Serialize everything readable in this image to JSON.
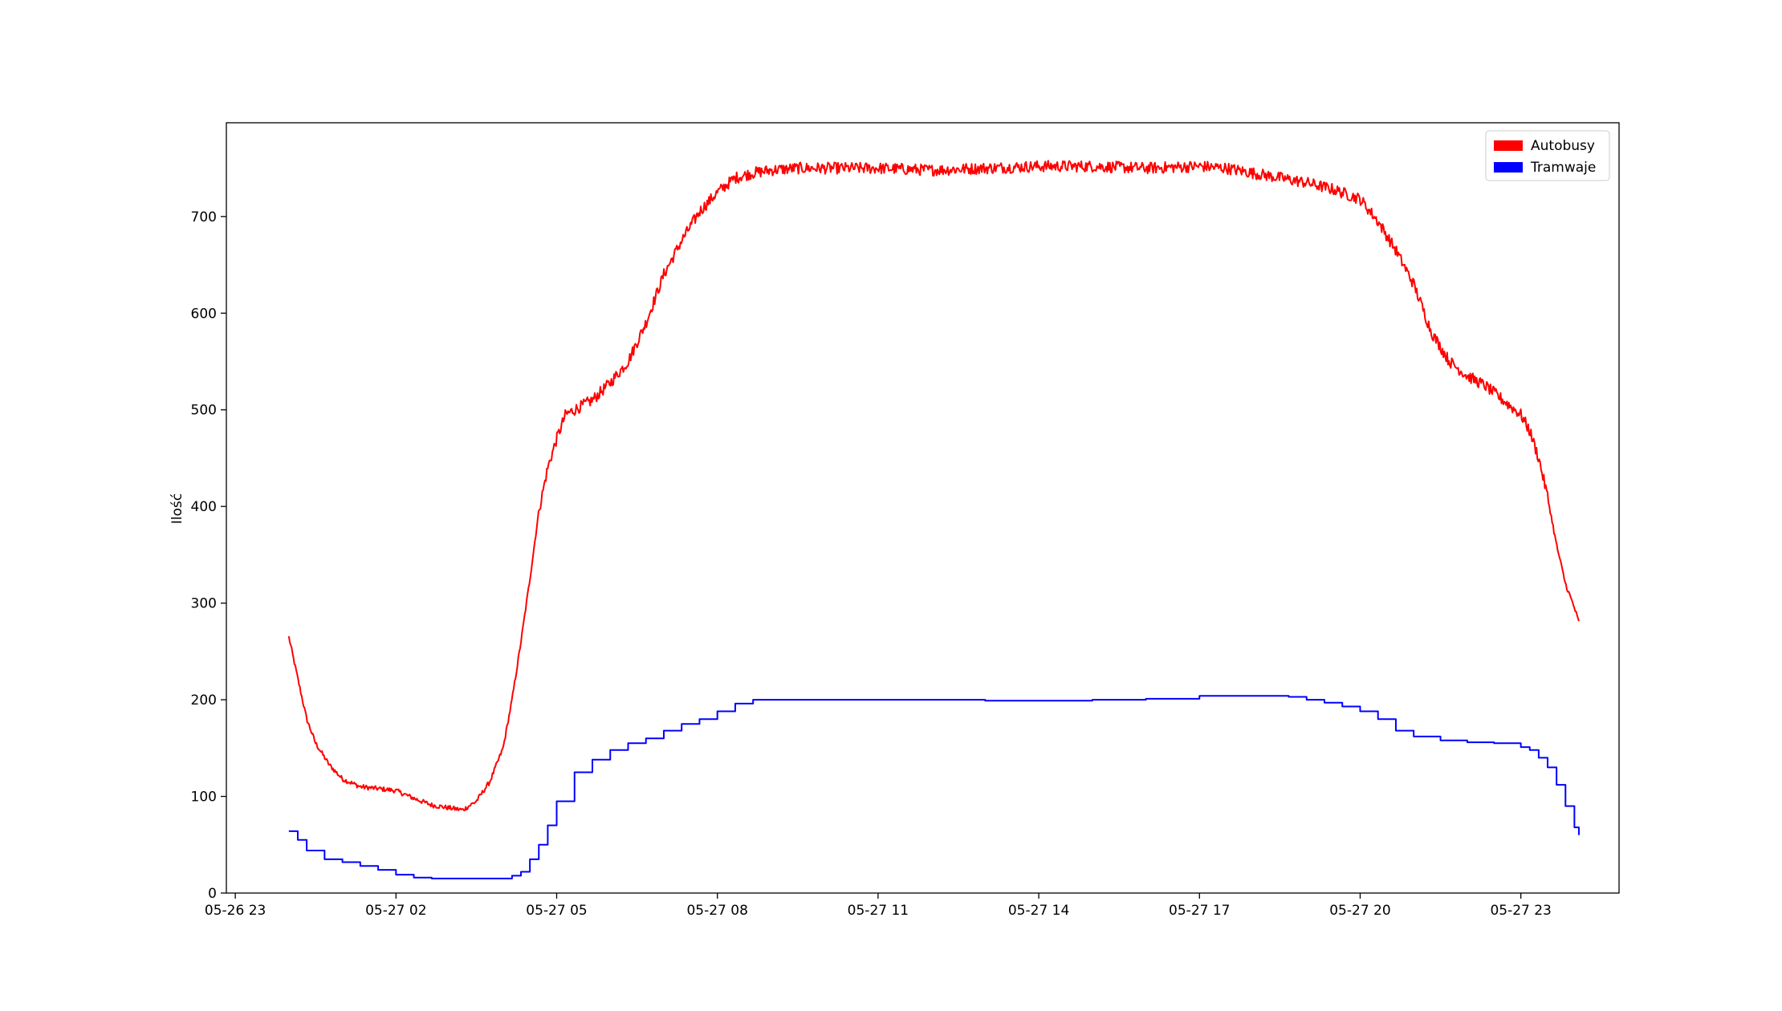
{
  "chart_data": {
    "type": "line",
    "title": "",
    "xlabel": "",
    "ylabel": "Ilość",
    "x_ticks": [
      "05-26 23",
      "05-27 02",
      "05-27 05",
      "05-27 08",
      "05-27 11",
      "05-27 14",
      "05-27 17",
      "05-27 20",
      "05-27 23"
    ],
    "y_ticks": [
      0,
      100,
      200,
      300,
      400,
      500,
      600,
      700
    ],
    "xlim": [
      "05-26 22:50",
      "05-28 00:50"
    ],
    "ylim": [
      0,
      797
    ],
    "grid": false,
    "legend_position": "top-right",
    "series": [
      {
        "name": "Autobusy",
        "color": "#ff0000",
        "x": [
          "05-27 00:00",
          "05-27 00:10",
          "05-27 00:20",
          "05-27 00:30",
          "05-27 00:45",
          "05-27 01:00",
          "05-27 01:20",
          "05-27 01:40",
          "05-27 02:00",
          "05-27 02:20",
          "05-27 02:40",
          "05-27 03:00",
          "05-27 03:15",
          "05-27 03:30",
          "05-27 03:45",
          "05-27 04:00",
          "05-27 04:10",
          "05-27 04:20",
          "05-27 04:30",
          "05-27 04:40",
          "05-27 04:50",
          "05-27 05:00",
          "05-27 05:10",
          "05-27 05:20",
          "05-27 05:40",
          "05-27 06:00",
          "05-27 06:20",
          "05-27 06:40",
          "05-27 07:00",
          "05-27 07:20",
          "05-27 07:40",
          "05-27 08:00",
          "05-27 08:20",
          "05-27 08:40",
          "05-27 09:00",
          "05-27 09:30",
          "05-27 10:00",
          "05-27 11:00",
          "05-27 12:00",
          "05-27 13:00",
          "05-27 14:00",
          "05-27 15:00",
          "05-27 16:00",
          "05-27 17:00",
          "05-27 17:30",
          "05-27 18:00",
          "05-27 18:30",
          "05-27 19:00",
          "05-27 19:30",
          "05-27 20:00",
          "05-27 20:20",
          "05-27 20:40",
          "05-27 21:00",
          "05-27 21:20",
          "05-27 21:40",
          "05-27 22:00",
          "05-27 22:20",
          "05-27 22:40",
          "05-27 23:00",
          "05-27 23:10",
          "05-27 23:20",
          "05-27 23:30",
          "05-27 23:40",
          "05-27 23:50",
          "05-28 00:00",
          "05-28 00:05"
        ],
        "y": [
          265,
          222,
          180,
          155,
          133,
          118,
          110,
          108,
          106,
          98,
          91,
          88,
          86,
          95,
          115,
          150,
          200,
          260,
          325,
          395,
          440,
          470,
          495,
          500,
          510,
          528,
          550,
          590,
          640,
          675,
          705,
          725,
          740,
          745,
          748,
          750,
          750,
          750,
          748,
          750,
          752,
          752,
          750,
          752,
          750,
          745,
          740,
          735,
          728,
          718,
          695,
          665,
          630,
          580,
          550,
          535,
          525,
          510,
          495,
          478,
          450,
          410,
          360,
          320,
          295,
          280
        ]
      },
      {
        "name": "Tramwaje",
        "color": "#0000ff",
        "x": [
          "05-27 00:00",
          "05-27 00:10",
          "05-27 00:20",
          "05-27 00:40",
          "05-27 01:00",
          "05-27 01:20",
          "05-27 01:40",
          "05-27 02:00",
          "05-27 02:20",
          "05-27 02:40",
          "05-27 03:00",
          "05-27 03:20",
          "05-27 03:40",
          "05-27 04:00",
          "05-27 04:10",
          "05-27 04:20",
          "05-27 04:30",
          "05-27 04:40",
          "05-27 04:50",
          "05-27 05:00",
          "05-27 05:20",
          "05-27 05:40",
          "05-27 06:00",
          "05-27 06:20",
          "05-27 06:40",
          "05-27 07:00",
          "05-27 07:20",
          "05-27 07:40",
          "05-27 08:00",
          "05-27 08:20",
          "05-27 08:40",
          "05-27 09:00",
          "05-27 10:00",
          "05-27 11:00",
          "05-27 12:00",
          "05-27 13:00",
          "05-27 14:00",
          "05-27 15:00",
          "05-27 16:00",
          "05-27 17:00",
          "05-27 18:00",
          "05-27 18:40",
          "05-27 19:00",
          "05-27 19:20",
          "05-27 19:40",
          "05-27 20:00",
          "05-27 20:20",
          "05-27 20:40",
          "05-27 21:00",
          "05-27 21:30",
          "05-27 22:00",
          "05-27 22:30",
          "05-27 23:00",
          "05-27 23:10",
          "05-27 23:20",
          "05-27 23:30",
          "05-27 23:40",
          "05-27 23:50",
          "05-28 00:00",
          "05-28 00:05"
        ],
        "y": [
          64,
          55,
          44,
          35,
          32,
          28,
          24,
          19,
          16,
          15,
          15,
          15,
          15,
          15,
          18,
          22,
          35,
          50,
          70,
          95,
          125,
          138,
          148,
          155,
          160,
          168,
          175,
          180,
          188,
          196,
          200,
          200,
          200,
          200,
          200,
          199,
          199,
          200,
          201,
          204,
          204,
          203,
          200,
          197,
          193,
          188,
          180,
          168,
          162,
          158,
          156,
          155,
          151,
          148,
          140,
          130,
          112,
          90,
          68,
          60
        ]
      }
    ]
  }
}
